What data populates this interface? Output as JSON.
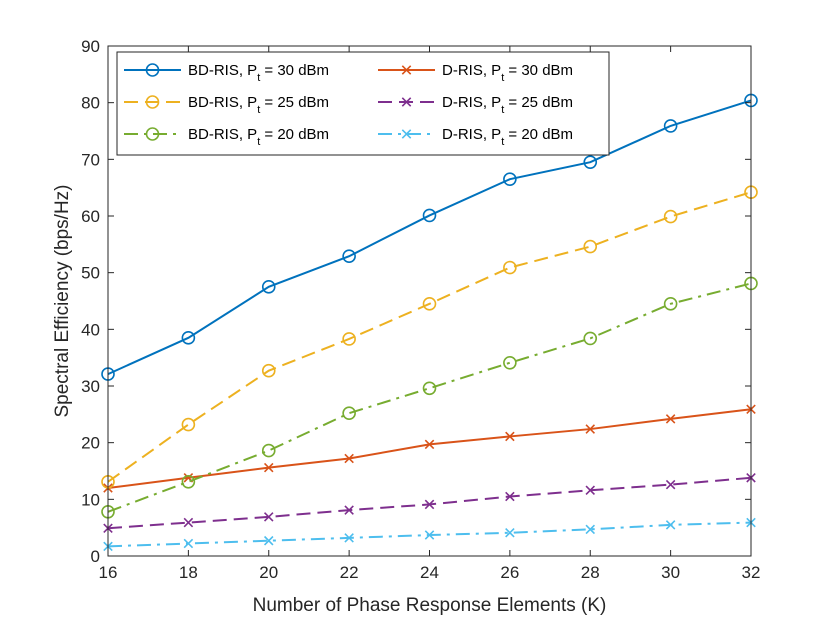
{
  "chart_data": {
    "type": "line",
    "title": "",
    "xlabel": "Number of Phase Response Elements (K)",
    "ylabel": "Spectral Efficiency (bps/Hz)",
    "xlim": [
      16,
      32
    ],
    "ylim": [
      0,
      90
    ],
    "xticks": [
      16,
      18,
      20,
      22,
      24,
      26,
      28,
      30,
      32
    ],
    "yticks": [
      0,
      10,
      20,
      30,
      40,
      50,
      60,
      70,
      80,
      90
    ],
    "grid": false,
    "legend_position": "top-left",
    "legend_columns": 2,
    "x": [
      16,
      18,
      20,
      22,
      24,
      26,
      28,
      30,
      32
    ],
    "series": [
      {
        "name": "BD-RIS, P",
        "subscript": "t",
        "suffix": " = 30 dBm",
        "color": "#0072BD",
        "dash": "solid",
        "marker": "circle",
        "values": [
          32.1,
          38.5,
          47.5,
          52.9,
          60.1,
          66.5,
          69.5,
          75.9,
          80.4
        ]
      },
      {
        "name": "D-RIS, P",
        "subscript": "t",
        "suffix": " = 30 dBm",
        "color": "#D95319",
        "dash": "solid",
        "marker": "x",
        "values": [
          12.0,
          13.8,
          15.6,
          17.2,
          19.7,
          21.1,
          22.4,
          24.2,
          25.9
        ]
      },
      {
        "name": "BD-RIS, P",
        "subscript": "t",
        "suffix": " = 25 dBm",
        "color": "#EDB120",
        "dash": "dashed",
        "marker": "circle",
        "values": [
          13.1,
          23.2,
          32.7,
          38.3,
          44.5,
          50.9,
          54.6,
          59.9,
          64.2
        ]
      },
      {
        "name": "D-RIS, P",
        "subscript": "t",
        "suffix": " = 25 dBm",
        "color": "#7E2F8E",
        "dash": "dashed",
        "marker": "x",
        "values": [
          4.9,
          5.9,
          6.9,
          8.1,
          9.1,
          10.5,
          11.6,
          12.6,
          13.8
        ]
      },
      {
        "name": "BD-RIS, P",
        "subscript": "t",
        "suffix": " = 20 dBm",
        "color": "#77AC30",
        "dash": "dashdot",
        "marker": "circle",
        "values": [
          7.8,
          13.1,
          18.6,
          25.2,
          29.6,
          34.1,
          38.4,
          44.5,
          48.1
        ]
      },
      {
        "name": "D-RIS, P",
        "subscript": "t",
        "suffix": " = 20 dBm",
        "color": "#4DBEEE",
        "dash": "dashdot",
        "marker": "x",
        "values": [
          1.7,
          2.2,
          2.7,
          3.2,
          3.7,
          4.1,
          4.7,
          5.5,
          5.9
        ]
      }
    ]
  }
}
